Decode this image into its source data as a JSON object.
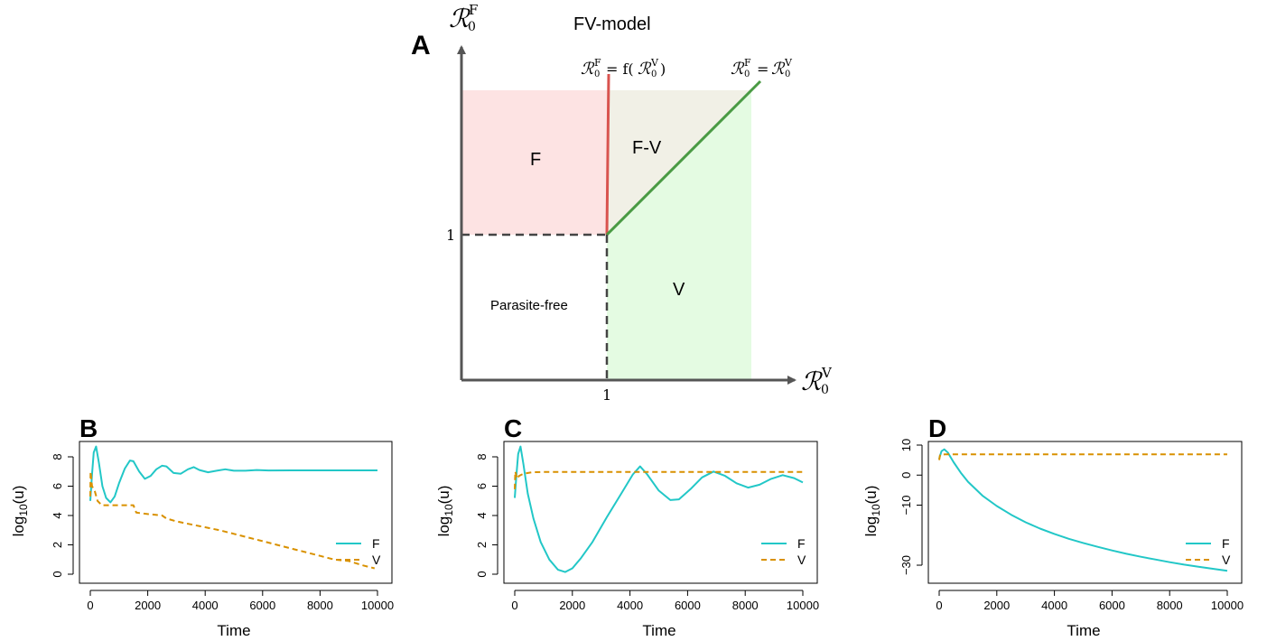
{
  "panel_a": {
    "panel_label": "A",
    "title": "FV-model",
    "y_axis_label": "R0F",
    "x_axis_label": "R0V",
    "y_tick": "1",
    "x_tick": "1",
    "curve_label_red": "R0F = f(R0V)",
    "curve_label_green": "R0F = R0V",
    "region_labels": {
      "f": "F",
      "fv": "F-V",
      "v": "V",
      "free": "Parasite-free"
    },
    "colors": {
      "f_region": "#fde3e3",
      "fv_region": "#f1f0e6",
      "v_region": "#e4fbe2",
      "red_curve": "#d9534f",
      "green_curve": "#4a9a44",
      "axis": "#555555"
    }
  },
  "legend": {
    "f": "F",
    "v": "V"
  },
  "series_colors": {
    "F": "#22c7c7",
    "V": "#d99100"
  },
  "chart_data": [
    {
      "type": "line",
      "panel_label": "B",
      "xlabel": "Time",
      "ylabel": "log10(u)",
      "xlim": [
        0,
        10000
      ],
      "ylim": [
        0,
        8.8
      ],
      "xticks": [
        0,
        2000,
        4000,
        6000,
        8000,
        10000
      ],
      "yticks": [
        0,
        2,
        4,
        6,
        8
      ],
      "series": [
        {
          "name": "F",
          "style": "solid",
          "points": [
            [
              0,
              5.0
            ],
            [
              60,
              6.8
            ],
            [
              120,
              8.3
            ],
            [
              200,
              8.7
            ],
            [
              300,
              7.6
            ],
            [
              420,
              6.0
            ],
            [
              550,
              5.2
            ],
            [
              700,
              4.9
            ],
            [
              850,
              5.3
            ],
            [
              1000,
              6.2
            ],
            [
              1200,
              7.2
            ],
            [
              1380,
              7.75
            ],
            [
              1500,
              7.7
            ],
            [
              1700,
              7.0
            ],
            [
              1900,
              6.5
            ],
            [
              2100,
              6.7
            ],
            [
              2300,
              7.15
            ],
            [
              2500,
              7.4
            ],
            [
              2650,
              7.35
            ],
            [
              2900,
              6.9
            ],
            [
              3150,
              6.85
            ],
            [
              3400,
              7.15
            ],
            [
              3600,
              7.3
            ],
            [
              3800,
              7.1
            ],
            [
              4100,
              6.95
            ],
            [
              4400,
              7.05
            ],
            [
              4700,
              7.15
            ],
            [
              5000,
              7.05
            ],
            [
              5400,
              7.05
            ],
            [
              5800,
              7.1
            ],
            [
              6200,
              7.07
            ],
            [
              7000,
              7.08
            ],
            [
              8000,
              7.08
            ],
            [
              9000,
              7.08
            ],
            [
              10000,
              7.08
            ]
          ]
        },
        {
          "name": "V",
          "style": "dashed",
          "points": [
            [
              0,
              5.3
            ],
            [
              10,
              7.0
            ],
            [
              60,
              6.0
            ],
            [
              150,
              5.7
            ],
            [
              250,
              5.0
            ],
            [
              400,
              4.7
            ],
            [
              700,
              4.7
            ],
            [
              1000,
              4.7
            ],
            [
              1500,
              4.7
            ],
            [
              1600,
              4.2
            ],
            [
              2000,
              4.1
            ],
            [
              2500,
              4.0
            ],
            [
              2650,
              3.8
            ],
            [
              3000,
              3.6
            ],
            [
              3500,
              3.4
            ],
            [
              4000,
              3.2
            ],
            [
              4500,
              3.0
            ],
            [
              5000,
              2.75
            ],
            [
              5500,
              2.5
            ],
            [
              6000,
              2.25
            ],
            [
              6500,
              2.0
            ],
            [
              7000,
              1.75
            ],
            [
              7500,
              1.5
            ],
            [
              8000,
              1.25
            ],
            [
              8500,
              1.0
            ],
            [
              9000,
              0.9
            ],
            [
              9500,
              0.6
            ],
            [
              9900,
              0.4
            ]
          ]
        }
      ]
    },
    {
      "type": "line",
      "panel_label": "C",
      "xlabel": "Time",
      "ylabel": "log10(u)",
      "xlim": [
        0,
        10000
      ],
      "ylim": [
        0,
        8.8
      ],
      "xticks": [
        0,
        2000,
        4000,
        6000,
        8000,
        10000
      ],
      "yticks": [
        0,
        2,
        4,
        6,
        8
      ],
      "series": [
        {
          "name": "F",
          "style": "solid",
          "points": [
            [
              0,
              5.2
            ],
            [
              60,
              6.8
            ],
            [
              120,
              8.2
            ],
            [
              200,
              8.7
            ],
            [
              300,
              7.5
            ],
            [
              450,
              5.5
            ],
            [
              650,
              3.8
            ],
            [
              900,
              2.2
            ],
            [
              1200,
              1.0
            ],
            [
              1500,
              0.3
            ],
            [
              1750,
              0.15
            ],
            [
              2000,
              0.4
            ],
            [
              2300,
              1.1
            ],
            [
              2700,
              2.2
            ],
            [
              3200,
              3.9
            ],
            [
              3700,
              5.5
            ],
            [
              4100,
              6.8
            ],
            [
              4350,
              7.35
            ],
            [
              4600,
              6.8
            ],
            [
              5000,
              5.7
            ],
            [
              5400,
              5.05
            ],
            [
              5700,
              5.1
            ],
            [
              6100,
              5.8
            ],
            [
              6500,
              6.6
            ],
            [
              6900,
              7.0
            ],
            [
              7300,
              6.7
            ],
            [
              7700,
              6.2
            ],
            [
              8100,
              5.9
            ],
            [
              8500,
              6.1
            ],
            [
              8900,
              6.5
            ],
            [
              9300,
              6.75
            ],
            [
              9700,
              6.55
            ],
            [
              10000,
              6.25
            ]
          ]
        },
        {
          "name": "V",
          "style": "dashed",
          "points": [
            [
              0,
              5.8
            ],
            [
              20,
              7.0
            ],
            [
              80,
              6.5
            ],
            [
              150,
              6.7
            ],
            [
              300,
              6.85
            ],
            [
              600,
              6.95
            ],
            [
              1000,
              6.97
            ],
            [
              2000,
              6.97
            ],
            [
              4000,
              6.97
            ],
            [
              6000,
              6.97
            ],
            [
              8000,
              6.97
            ],
            [
              10000,
              6.97
            ]
          ]
        }
      ]
    },
    {
      "type": "line",
      "panel_label": "D",
      "xlabel": "Time",
      "ylabel": "log10(u)",
      "xlim": [
        0,
        10000
      ],
      "ylim": [
        -33,
        10
      ],
      "xticks": [
        0,
        2000,
        4000,
        6000,
        8000,
        10000
      ],
      "yticks": [
        -30,
        -10,
        0,
        10
      ],
      "series": [
        {
          "name": "F",
          "style": "solid",
          "points": [
            [
              0,
              5.5
            ],
            [
              80,
              8.0
            ],
            [
              180,
              8.6
            ],
            [
              300,
              7.5
            ],
            [
              500,
              4.3
            ],
            [
              750,
              0.8
            ],
            [
              1000,
              -2.2
            ],
            [
              1500,
              -6.8
            ],
            [
              2000,
              -10.3
            ],
            [
              2500,
              -13.2
            ],
            [
              3000,
              -15.7
            ],
            [
              3500,
              -17.8
            ],
            [
              4000,
              -19.6
            ],
            [
              4500,
              -21.2
            ],
            [
              5000,
              -22.6
            ],
            [
              5500,
              -23.9
            ],
            [
              6000,
              -25.1
            ],
            [
              6500,
              -26.2
            ],
            [
              7000,
              -27.2
            ],
            [
              7500,
              -28.1
            ],
            [
              8000,
              -29.0
            ],
            [
              8500,
              -29.8
            ],
            [
              9000,
              -30.5
            ],
            [
              9500,
              -31.2
            ],
            [
              10000,
              -31.9
            ]
          ]
        },
        {
          "name": "V",
          "style": "dashed",
          "points": [
            [
              0,
              5.0
            ],
            [
              30,
              6.8
            ],
            [
              200,
              6.9
            ],
            [
              1000,
              6.9
            ],
            [
              3000,
              6.9
            ],
            [
              5000,
              6.9
            ],
            [
              7000,
              6.9
            ],
            [
              10000,
              6.9
            ]
          ]
        }
      ]
    }
  ]
}
